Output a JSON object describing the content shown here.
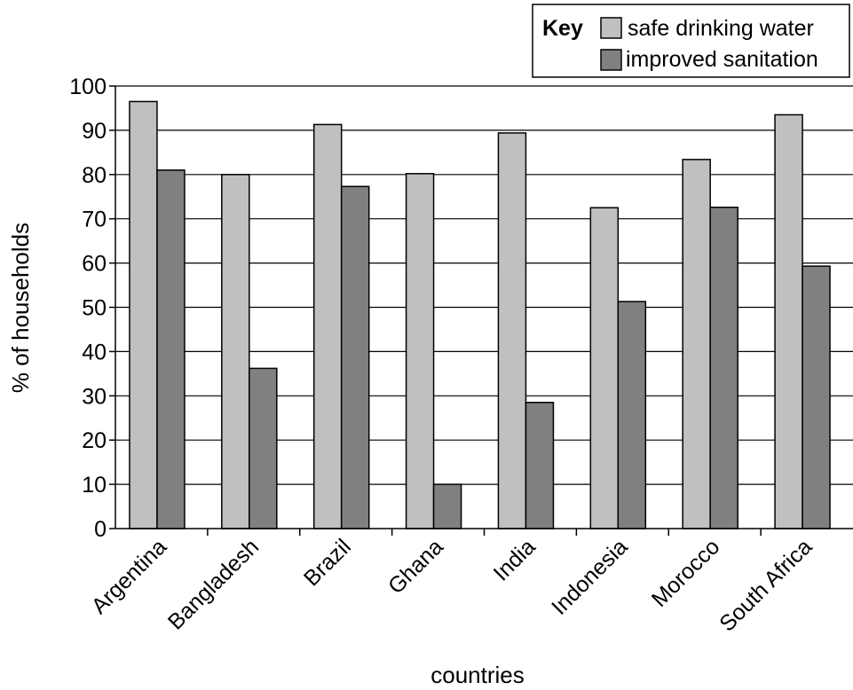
{
  "chart_data": {
    "type": "bar",
    "categories": [
      "Argentina",
      "Bangladesh",
      "Brazil",
      "Ghana",
      "India",
      "Indonesia",
      "Morocco",
      "South Africa"
    ],
    "series": [
      {
        "name": "safe drinking water",
        "color": "#c0c0c0",
        "values": [
          96.5,
          80,
          91.3,
          80.2,
          89.4,
          72.5,
          83.4,
          93.5
        ]
      },
      {
        "name": "improved sanitation",
        "color": "#808080",
        "values": [
          81,
          36.2,
          77.3,
          10,
          28.5,
          51.3,
          72.6,
          59.3
        ]
      }
    ],
    "xlabel": "countries",
    "ylabel": "% of households",
    "ylim": [
      0,
      100
    ],
    "yticks": [
      0,
      10,
      20,
      30,
      40,
      50,
      60,
      70,
      80,
      90,
      100
    ],
    "grid": true,
    "legend": {
      "title": "Key",
      "position": "top-right"
    }
  }
}
